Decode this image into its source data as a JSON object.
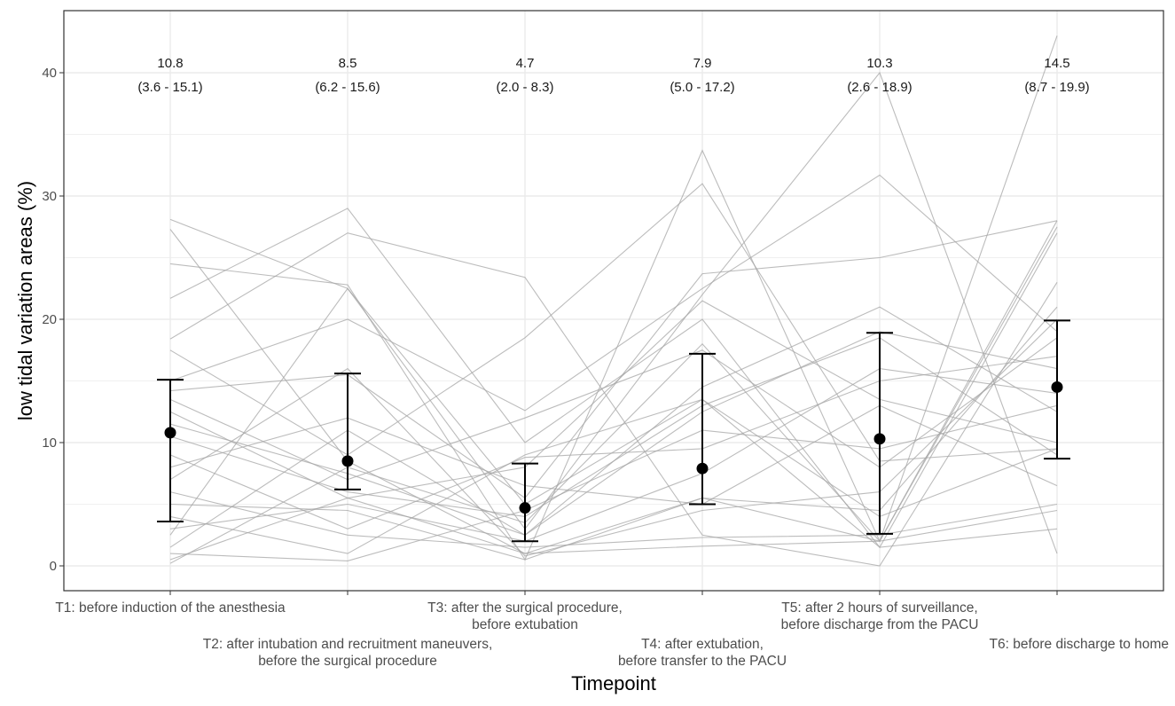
{
  "chart_data": {
    "type": "line",
    "title": "",
    "xlabel": "Timepoint",
    "ylabel": "low tidal variation areas (%)",
    "ylim": [
      -2,
      44
    ],
    "y_ticks": [
      0,
      10,
      20,
      30,
      40
    ],
    "grid": true,
    "legend": "none",
    "categories": [
      [
        "T1: before induction of the anesthesia"
      ],
      [
        "T2: after intubation and recruitment maneuvers,",
        "before the surgical procedure"
      ],
      [
        "T3: after the surgical procedure,",
        "before extubation"
      ],
      [
        "T4: after extubation,",
        "before transfer to the PACU"
      ],
      [
        "T5: after 2 hours of surveillance,",
        "before discharge from the PACU"
      ],
      [
        "T6: before discharge to home"
      ]
    ],
    "summary": {
      "median": [
        10.8,
        8.5,
        4.7,
        7.9,
        10.3,
        14.5
      ],
      "lower": [
        3.6,
        6.2,
        2.0,
        5.0,
        2.6,
        8.7
      ],
      "upper": [
        15.1,
        15.6,
        8.3,
        17.2,
        18.9,
        19.9
      ],
      "median_labels": [
        "10.8",
        "8.5",
        "4.7",
        "7.9",
        "10.3",
        "14.5"
      ],
      "range_labels": [
        "(3.6 - 15.1)",
        "(6.2 - 15.6)",
        "(2.0 - 8.3)",
        "(5.0 - 17.2)",
        "(2.6 - 18.9)",
        "(8.7 - 19.9)"
      ]
    },
    "individual_series": [
      [
        27.3,
        8.5,
        1.0,
        5.5,
        2.0,
        28.0
      ],
      [
        28.1,
        22.5,
        3.0,
        22.0,
        40.0,
        1.0
      ],
      [
        24.5,
        22.8,
        0.5,
        33.7,
        2.0,
        43.0
      ],
      [
        21.7,
        29.0,
        10.0,
        20.0,
        1.5,
        27.0
      ],
      [
        18.4,
        27.0,
        23.4,
        2.5,
        0.0,
        23.0
      ],
      [
        17.5,
        9.0,
        18.5,
        31.0,
        8.5,
        9.5
      ],
      [
        15.0,
        20.0,
        12.6,
        22.5,
        31.7,
        19.0
      ],
      [
        14.2,
        15.5,
        5.5,
        23.7,
        25.0,
        28.0
      ],
      [
        13.5,
        7.0,
        12.0,
        17.5,
        8.0,
        18.5
      ],
      [
        12.5,
        5.5,
        8.0,
        21.5,
        13.5,
        10.0
      ],
      [
        11.5,
        7.5,
        2.5,
        14.5,
        21.0,
        12.5
      ],
      [
        10.5,
        6.0,
        4.0,
        13.0,
        18.5,
        9.0
      ],
      [
        9.0,
        3.0,
        8.8,
        9.5,
        15.0,
        17.0
      ],
      [
        8.0,
        12.0,
        6.5,
        5.0,
        13.0,
        6.5
      ],
      [
        7.0,
        16.0,
        0.8,
        4.5,
        6.0,
        20.0
      ],
      [
        6.0,
        2.5,
        1.5,
        2.3,
        2.5,
        5.0
      ],
      [
        5.0,
        4.5,
        0.5,
        5.5,
        4.5,
        21.0
      ],
      [
        4.0,
        1.0,
        9.0,
        13.5,
        1.5,
        3.0
      ],
      [
        3.0,
        5.0,
        2.0,
        7.5,
        16.0,
        14.0
      ],
      [
        2.5,
        22.5,
        5.0,
        13.5,
        4.0,
        9.5
      ],
      [
        1.5,
        11.0,
        2.5,
        12.5,
        19.0,
        16.0
      ],
      [
        0.5,
        5.5,
        1.0,
        1.6,
        2.0,
        4.5
      ],
      [
        0.2,
        8.0,
        3.5,
        18.0,
        2.0,
        27.5
      ],
      [
        1.0,
        0.4,
        4.5,
        11.0,
        9.5,
        13.0
      ]
    ],
    "colors": {
      "grid": "#ebebeb",
      "individual_line": "#a6a6a6",
      "summary": "#000000",
      "border": "#333333"
    }
  }
}
